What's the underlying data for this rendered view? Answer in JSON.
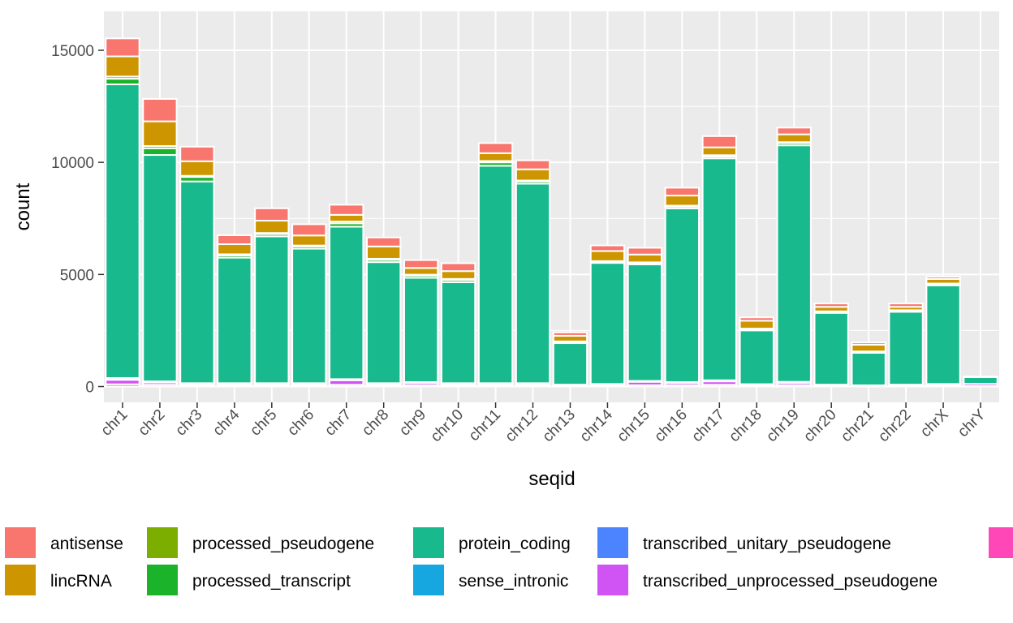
{
  "chart_data": {
    "type": "bar",
    "stacked": true,
    "xlabel": "seqid",
    "ylabel": "count",
    "ylim": [
      0,
      16000
    ],
    "yticks": [
      0,
      5000,
      10000,
      15000
    ],
    "grid": true,
    "legend_position": "bottom",
    "categories": [
      "chr1",
      "chr2",
      "chr3",
      "chr4",
      "chr5",
      "chr6",
      "chr7",
      "chr8",
      "chr9",
      "chr10",
      "chr11",
      "chr12",
      "chr13",
      "chr14",
      "chr15",
      "chr16",
      "chr17",
      "chr18",
      "chr19",
      "chr20",
      "chr21",
      "chr22",
      "chrX",
      "chrY"
    ],
    "series": [
      {
        "name": "antisense",
        "color": "#F8766D",
        "values": [
          800,
          1000,
          650,
          400,
          550,
          500,
          450,
          400,
          350,
          350,
          450,
          400,
          150,
          250,
          300,
          350,
          500,
          150,
          300,
          150,
          100,
          150,
          100,
          5
        ]
      },
      {
        "name": "lincRNA",
        "color": "#CD9600",
        "values": [
          900,
          1100,
          650,
          450,
          550,
          450,
          300,
          550,
          300,
          350,
          350,
          500,
          250,
          450,
          350,
          450,
          350,
          350,
          350,
          200,
          300,
          150,
          200,
          10
        ]
      },
      {
        "name": "processed_pseudogene",
        "color": "#7CAE00",
        "values": [
          100,
          100,
          50,
          50,
          50,
          40,
          80,
          50,
          40,
          50,
          60,
          40,
          30,
          30,
          40,
          40,
          60,
          30,
          40,
          20,
          20,
          20,
          30,
          5
        ]
      },
      {
        "name": "processed_transcript",
        "color": "#1AB32A",
        "values": [
          250,
          300,
          200,
          100,
          100,
          100,
          150,
          100,
          100,
          100,
          150,
          100,
          50,
          50,
          50,
          80,
          80,
          50,
          100,
          50,
          40,
          50,
          50,
          5
        ]
      },
      {
        "name": "protein_coding",
        "color": "#19B98E",
        "values": [
          13100,
          10100,
          9000,
          5600,
          6550,
          6000,
          6800,
          5400,
          4650,
          4500,
          9700,
          8900,
          1850,
          5400,
          5200,
          7750,
          9900,
          2400,
          10550,
          3200,
          1450,
          3250,
          4400,
          300
        ]
      },
      {
        "name": "sense_intronic",
        "color": "#17A7E0",
        "values": [
          60,
          40,
          30,
          30,
          30,
          30,
          40,
          30,
          30,
          30,
          30,
          30,
          20,
          20,
          30,
          30,
          40,
          20,
          40,
          20,
          10,
          20,
          20,
          0
        ]
      },
      {
        "name": "transcribed_unitary_pseudogene",
        "color": "#4C84FF",
        "values": [
          20,
          10,
          10,
          10,
          10,
          10,
          10,
          10,
          10,
          10,
          10,
          10,
          5,
          5,
          10,
          10,
          10,
          5,
          10,
          5,
          5,
          5,
          5,
          0
        ]
      },
      {
        "name": "transcribed_unprocessed_pseudogene",
        "color": "#D053F4",
        "values": [
          200,
          100,
          50,
          50,
          50,
          50,
          200,
          50,
          100,
          50,
          50,
          50,
          30,
          50,
          150,
          100,
          150,
          50,
          100,
          30,
          20,
          30,
          50,
          100
        ]
      },
      {
        "name": "",
        "color": "#FF47B7",
        "values": [
          100,
          80,
          60,
          60,
          60,
          60,
          80,
          60,
          60,
          60,
          60,
          60,
          30,
          40,
          60,
          60,
          80,
          30,
          60,
          30,
          20,
          30,
          40,
          20
        ]
      }
    ]
  }
}
